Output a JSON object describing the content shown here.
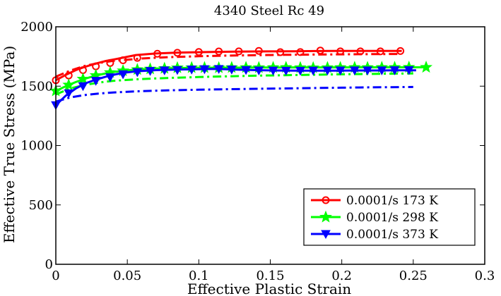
{
  "chart_data": {
    "type": "line",
    "title": "4340 Steel Rc 49",
    "xlabel": "Effective Plastic Strain",
    "ylabel": "Effective True Stress (MPa)",
    "xlim": [
      0,
      0.3
    ],
    "ylim": [
      0,
      2000
    ],
    "xticks": [
      0,
      0.05,
      0.1,
      0.15,
      0.2,
      0.25,
      0.3
    ],
    "xtick_labels": [
      "0",
      "0.05",
      "0.1",
      "0.15",
      "0.2",
      "0.25",
      "0.3"
    ],
    "yticks": [
      0,
      500,
      1000,
      1500,
      2000
    ],
    "ytick_labels": [
      "0",
      "500",
      "1000",
      "1500",
      "2000"
    ],
    "grid": false,
    "legend_position": "bottom-right",
    "series": [
      {
        "name": "0.0001/s 173 K",
        "color": "#ff0000",
        "marker": "circle",
        "x": [
          0,
          0.007,
          0.014,
          0.021,
          0.028,
          0.035,
          0.042,
          0.049,
          0.056,
          0.07,
          0.084,
          0.098,
          0.112,
          0.126,
          0.14,
          0.154,
          0.168,
          0.182,
          0.196,
          0.21,
          0.224,
          0.238,
          0.242
        ],
        "y": [
          1550,
          1595,
          1635,
          1665,
          1690,
          1712,
          1728,
          1745,
          1762,
          1775,
          1782,
          1786,
          1789,
          1791,
          1792,
          1793,
          1794,
          1796,
          1797,
          1797,
          1797,
          1797,
          1797
        ],
        "marker_x": [
          0,
          0.009,
          0.019,
          0.028,
          0.038,
          0.047,
          0.057,
          0.071,
          0.085,
          0.1,
          0.114,
          0.128,
          0.142,
          0.157,
          0.171,
          0.185,
          0.199,
          0.213,
          0.227,
          0.241
        ],
        "marker_y": [
          1550,
          1590,
          1635,
          1667,
          1695,
          1718,
          1738,
          1773,
          1781,
          1788,
          1792,
          1793,
          1797,
          1786,
          1787,
          1800,
          1793,
          1793,
          1793,
          1796
        ]
      },
      {
        "name": "0.0001/s 298 K",
        "color": "#00ff00",
        "marker": "pentagram",
        "x": [
          0,
          0.007,
          0.014,
          0.021,
          0.028,
          0.035,
          0.042,
          0.049,
          0.056,
          0.07,
          0.084,
          0.098,
          0.112,
          0.126,
          0.14,
          0.154,
          0.168,
          0.182,
          0.196,
          0.21,
          0.224,
          0.238,
          0.252,
          0.259
        ],
        "y": [
          1460,
          1500,
          1535,
          1565,
          1590,
          1608,
          1622,
          1632,
          1640,
          1648,
          1652,
          1654,
          1655,
          1656,
          1657,
          1657,
          1658,
          1658,
          1658,
          1659,
          1659,
          1659,
          1659,
          1659
        ],
        "marker_x": [
          0,
          0.009,
          0.019,
          0.028,
          0.038,
          0.047,
          0.057,
          0.066,
          0.076,
          0.085,
          0.095,
          0.104,
          0.114,
          0.123,
          0.133,
          0.142,
          0.152,
          0.161,
          0.171,
          0.18,
          0.19,
          0.199,
          0.209,
          0.218,
          0.228,
          0.237,
          0.247,
          0.259
        ],
        "marker_y": [
          1460,
          1510,
          1560,
          1590,
          1615,
          1630,
          1640,
          1645,
          1650,
          1655,
          1656,
          1656,
          1655,
          1657,
          1657,
          1656,
          1657,
          1658,
          1656,
          1655,
          1656,
          1657,
          1658,
          1657,
          1658,
          1658,
          1659,
          1659
        ]
      },
      {
        "name": "0.0001/s 373 K",
        "color": "#0000ff",
        "marker": "triangle-down",
        "x": [
          0,
          0.007,
          0.014,
          0.021,
          0.028,
          0.035,
          0.042,
          0.049,
          0.056,
          0.07,
          0.084,
          0.098,
          0.112,
          0.126,
          0.14,
          0.154,
          0.168,
          0.182,
          0.196,
          0.21,
          0.224,
          0.238,
          0.252
        ],
        "y": [
          1340,
          1420,
          1480,
          1525,
          1555,
          1580,
          1600,
          1615,
          1625,
          1635,
          1640,
          1643,
          1645,
          1640,
          1635,
          1632,
          1630,
          1630,
          1631,
          1632,
          1632,
          1633,
          1634
        ],
        "marker_x": [
          0,
          0.009,
          0.019,
          0.028,
          0.038,
          0.047,
          0.057,
          0.066,
          0.076,
          0.085,
          0.095,
          0.104,
          0.114,
          0.123,
          0.133,
          0.142,
          0.152,
          0.161,
          0.171,
          0.18,
          0.19,
          0.199,
          0.209,
          0.218,
          0.228,
          0.237,
          0.247
        ],
        "marker_y": [
          1340,
          1440,
          1500,
          1545,
          1575,
          1600,
          1618,
          1628,
          1633,
          1636,
          1640,
          1643,
          1645,
          1640,
          1636,
          1632,
          1631,
          1630,
          1630,
          1631,
          1632,
          1632,
          1633,
          1633,
          1633,
          1634,
          1635
        ]
      },
      {
        "name": "",
        "color": "#ff0000",
        "marker": "none",
        "dashed": true,
        "x": [
          0,
          0.01,
          0.02,
          0.03,
          0.04,
          0.06,
          0.08,
          0.1,
          0.12,
          0.14,
          0.16,
          0.18,
          0.2,
          0.22,
          0.24
        ],
        "y": [
          1580,
          1630,
          1670,
          1695,
          1713,
          1733,
          1745,
          1752,
          1757,
          1761,
          1764,
          1766,
          1768,
          1770,
          1771
        ]
      },
      {
        "name": "",
        "color": "#00ff00",
        "marker": "none",
        "dashed": true,
        "x": [
          0,
          0.01,
          0.02,
          0.03,
          0.04,
          0.06,
          0.08,
          0.1,
          0.12,
          0.14,
          0.16,
          0.18,
          0.2,
          0.22,
          0.24,
          0.25
        ],
        "y": [
          1430,
          1480,
          1510,
          1530,
          1545,
          1560,
          1570,
          1577,
          1583,
          1588,
          1592,
          1596,
          1600,
          1603,
          1606,
          1607
        ]
      },
      {
        "name": "",
        "color": "#0000ff",
        "marker": "none",
        "dashed": true,
        "x": [
          0,
          0.01,
          0.02,
          0.03,
          0.04,
          0.06,
          0.08,
          0.1,
          0.12,
          0.14,
          0.16,
          0.18,
          0.2,
          0.22,
          0.24,
          0.25
        ],
        "y": [
          1370,
          1405,
          1425,
          1438,
          1447,
          1458,
          1465,
          1470,
          1474,
          1478,
          1481,
          1484,
          1487,
          1490,
          1492,
          1493
        ]
      }
    ]
  }
}
